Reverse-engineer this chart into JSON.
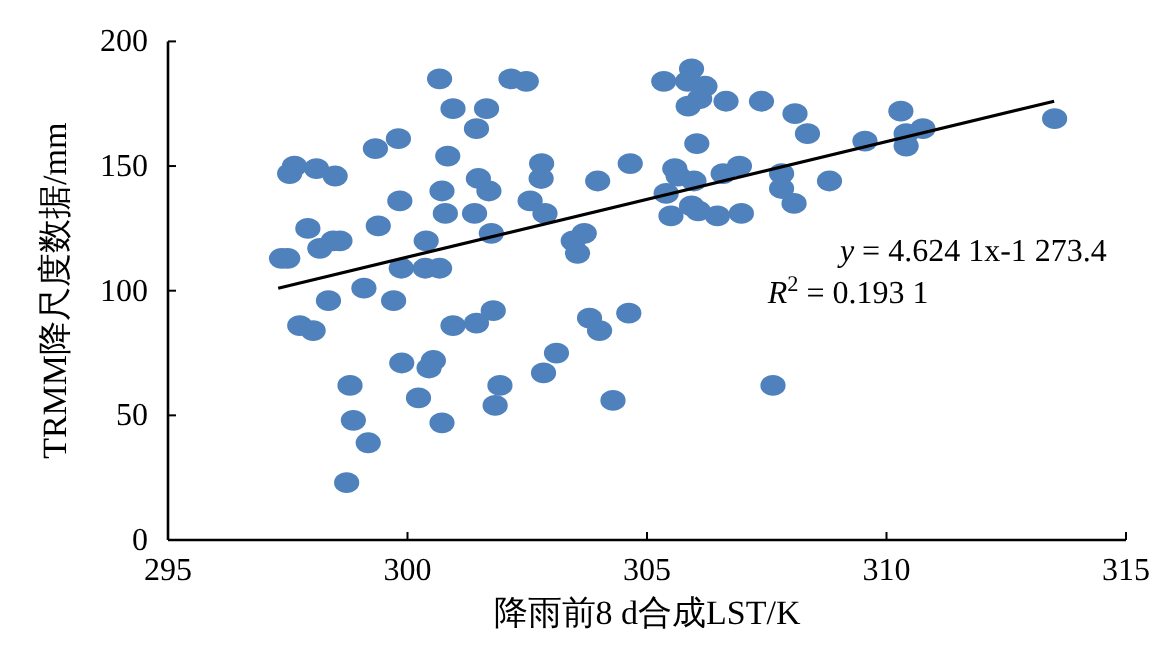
{
  "chart_data": {
    "type": "scatter",
    "xlabel": "降雨前8 d合成LST/K",
    "ylabel": "TRMM降尺度数据/mm",
    "xlim": [
      295,
      315
    ],
    "xticks": [
      295,
      300,
      305,
      310,
      315
    ],
    "ylim": [
      0,
      200
    ],
    "yticks": [
      0,
      50,
      100,
      150,
      200
    ],
    "series": [
      {
        "color": "#4f81bd",
        "marker": "circle",
        "x": [
          300.67,
          300.95,
          301.65,
          301.44,
          299.33,
          299.81,
          300.84,
          297.64,
          297.54,
          298.1,
          298.49,
          301.48,
          301.7,
          300.72,
          299.84,
          300.79,
          301.4,
          297.92,
          299.39,
          301.75,
          300.39,
          298.59,
          298.45,
          298.17,
          297.37,
          297.5,
          299.87,
          300.37,
          300.67,
          299.09,
          298.35,
          299.71,
          297.75,
          298.03,
          300.95,
          301.44,
          301.79,
          299.88,
          300.54,
          300.45,
          298.8,
          300.23,
          301.93,
          298.87,
          300.72,
          301.83,
          299.18,
          298.73,
          302.16,
          302.48,
          305.93,
          305.35,
          305.85,
          306.21,
          306.1,
          305.86,
          306.65,
          307.39,
          308.09,
          308.35,
          306.04,
          302.8,
          302.79,
          304.65,
          303.97,
          305.58,
          305.65,
          305.98,
          306.59,
          306.93,
          307.81,
          307.81,
          308.07,
          302.56,
          302.87,
          305.4,
          305.5,
          305.93,
          306.07,
          306.47,
          306.97,
          303.46,
          303.69,
          303.55,
          303.8,
          304.01,
          304.62,
          303.11,
          302.84,
          304.29,
          307.63,
          310.3,
          310.41,
          310.76,
          309.55,
          310.41,
          308.81,
          313.51
        ],
        "values": [
          185,
          173,
          173,
          165,
          157,
          161,
          154,
          150,
          147,
          149,
          146,
          145,
          140,
          140,
          136,
          131,
          131,
          125,
          126,
          123,
          120,
          120,
          120,
          117,
          113,
          113,
          109,
          109,
          109,
          101,
          96,
          96,
          86,
          84,
          86,
          87,
          92,
          71,
          72,
          69,
          62,
          57,
          62,
          48,
          47,
          54,
          39,
          23,
          185,
          184,
          189,
          184,
          184,
          182,
          177,
          174,
          176,
          176,
          171,
          163,
          159,
          151,
          145,
          151,
          144,
          149,
          146,
          144,
          147,
          150,
          147,
          141,
          135,
          136,
          131,
          139,
          130,
          134,
          132,
          130,
          131,
          120,
          123,
          115,
          89,
          84,
          91,
          75,
          67,
          56,
          62,
          172,
          163,
          165,
          160,
          158,
          144,
          169
        ]
      },
      {
        "type": "line",
        "marker": "none",
        "color": "#000000",
        "x": [
          297.3,
          313.5
        ],
        "values": [
          101,
          176
        ]
      }
    ],
    "annotations": [
      "*y* = 4.624 1x-1 273.4",
      "*R*$^{2}$ = 0.193 1"
    ]
  }
}
